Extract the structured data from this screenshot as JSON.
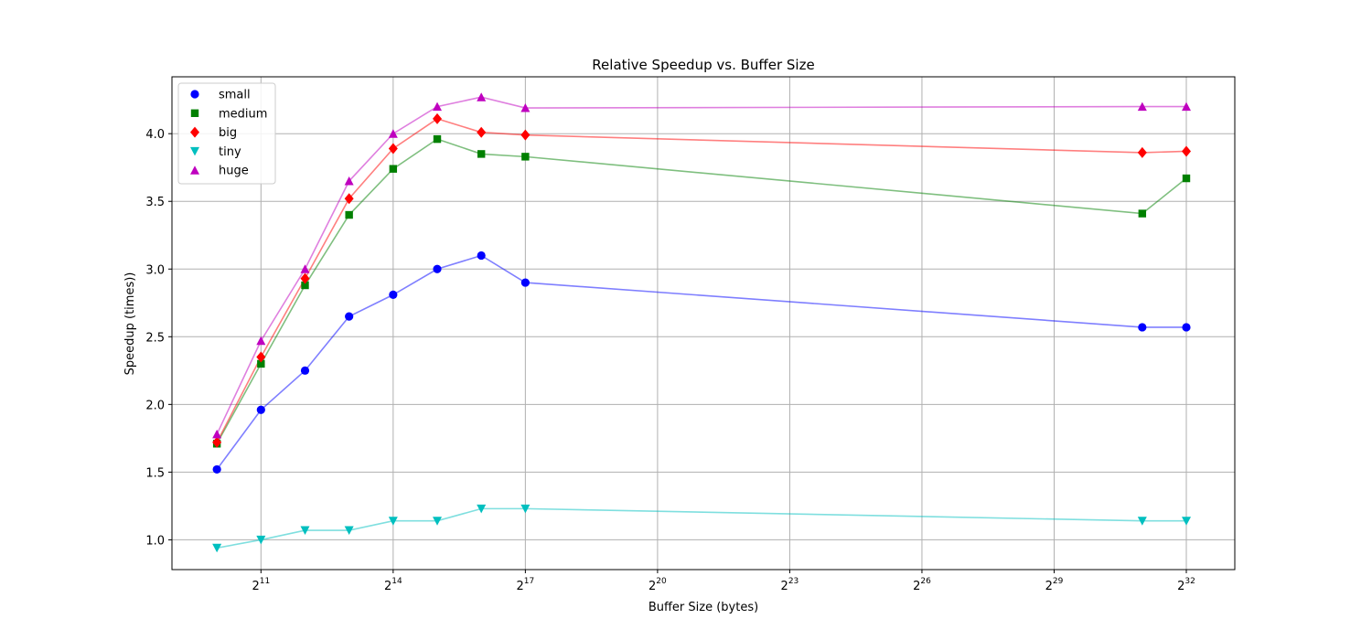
{
  "chart_data": {
    "type": "line",
    "title": "Relative Speedup vs. Buffer Size",
    "xlabel": "Buffer Size (bytes)",
    "ylabel": "Speedup (times))",
    "x_scale": "log2",
    "x_exponents": [
      10,
      11,
      12,
      13,
      14,
      15,
      16,
      17,
      31,
      32
    ],
    "x_ticks": [
      {
        "exp": 11,
        "base": "2",
        "sup": "11"
      },
      {
        "exp": 14,
        "base": "2",
        "sup": "14"
      },
      {
        "exp": 17,
        "base": "2",
        "sup": "17"
      },
      {
        "exp": 20,
        "base": "2",
        "sup": "20"
      },
      {
        "exp": 23,
        "base": "2",
        "sup": "23"
      },
      {
        "exp": 26,
        "base": "2",
        "sup": "26"
      },
      {
        "exp": 29,
        "base": "2",
        "sup": "29"
      },
      {
        "exp": 32,
        "base": "2",
        "sup": "32"
      }
    ],
    "xlim_exponent": [
      8.98,
      33.1
    ],
    "ylim": [
      0.78,
      4.42
    ],
    "y_ticks": [
      "1.0",
      "1.5",
      "2.0",
      "2.5",
      "3.0",
      "3.5",
      "4.0"
    ],
    "grid": true,
    "legend_position": "top-left",
    "series": [
      {
        "name": "small",
        "marker": "circle",
        "color": "#0000ff",
        "values": [
          1.52,
          1.96,
          2.25,
          2.65,
          2.81,
          3.0,
          3.1,
          2.9,
          2.57,
          2.57
        ]
      },
      {
        "name": "medium",
        "marker": "square",
        "color": "#008000",
        "values": [
          1.71,
          2.3,
          2.88,
          3.4,
          3.74,
          3.96,
          3.85,
          3.83,
          3.41,
          3.67
        ]
      },
      {
        "name": "big",
        "marker": "diamond",
        "color": "#ff0000",
        "values": [
          1.72,
          2.35,
          2.93,
          3.52,
          3.89,
          4.11,
          4.01,
          3.99,
          3.86,
          3.87
        ]
      },
      {
        "name": "tiny",
        "marker": "triangle-down",
        "color": "#00bfbf",
        "values": [
          0.94,
          1.0,
          1.07,
          1.07,
          1.14,
          1.14,
          1.23,
          1.23,
          1.14,
          1.14
        ]
      },
      {
        "name": "huge",
        "marker": "triangle-up",
        "color": "#bf00bf",
        "values": [
          1.78,
          2.47,
          3.0,
          3.65,
          4.0,
          4.2,
          4.27,
          4.19,
          4.2,
          4.2
        ]
      }
    ]
  }
}
